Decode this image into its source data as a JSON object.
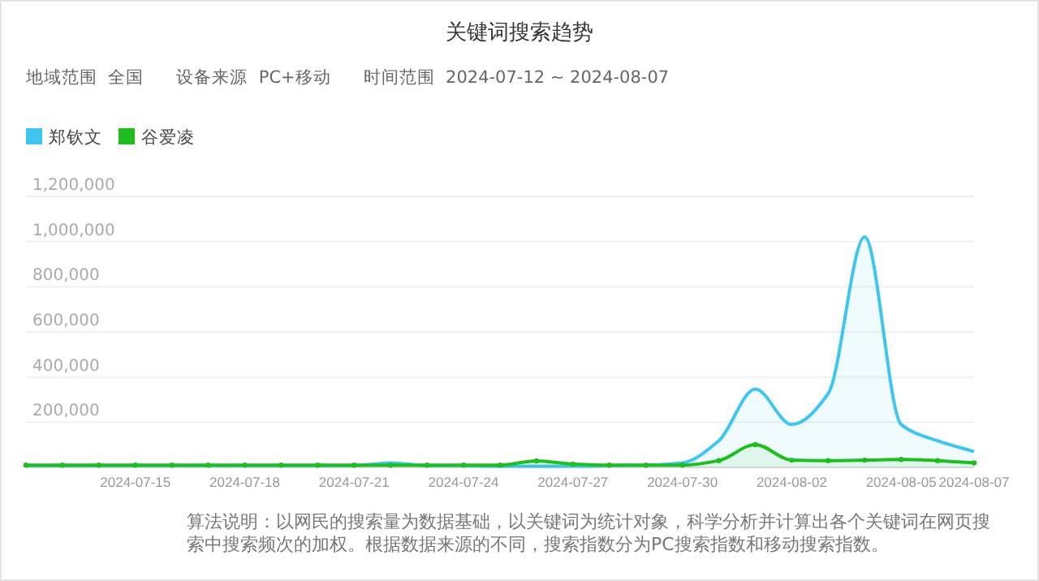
{
  "chart_data": {
    "type": "area",
    "title": "关键词搜索趋势",
    "subtitle": "地域范围  全国      设备来源  PC+移动      时间范围  2024-07-12 ~ 2024-08-07",
    "x": [
      "2024-07-12",
      "2024-07-13",
      "2024-07-14",
      "2024-07-15",
      "2024-07-16",
      "2024-07-17",
      "2024-07-18",
      "2024-07-19",
      "2024-07-20",
      "2024-07-21",
      "2024-07-22",
      "2024-07-23",
      "2024-07-24",
      "2024-07-25",
      "2024-07-26",
      "2024-07-27",
      "2024-07-28",
      "2024-07-29",
      "2024-07-30",
      "2024-07-31",
      "2024-08-01",
      "2024-08-02",
      "2024-08-03",
      "2024-08-04",
      "2024-08-05",
      "2024-08-06",
      "2024-08-07"
    ],
    "series": [
      {
        "name": "郑钦文",
        "color": "#3ec6f0",
        "values": [
          8000,
          8000,
          8000,
          8000,
          8000,
          8000,
          8000,
          8000,
          8000,
          8000,
          20000,
          8000,
          8000,
          5000,
          5000,
          5000,
          8000,
          10000,
          20000,
          118000,
          347000,
          190000,
          327000,
          1020000,
          190000,
          118000,
          70000
        ]
      },
      {
        "name": "谷爱凌",
        "color": "#1fbd1f",
        "marker": "circle",
        "values": [
          10000,
          10000,
          10000,
          10000,
          10000,
          10000,
          10000,
          10000,
          10000,
          10000,
          10000,
          10000,
          10000,
          10000,
          29000,
          15000,
          10000,
          10000,
          10000,
          30000,
          101000,
          32000,
          30000,
          32000,
          35000,
          30000,
          20000
        ]
      }
    ],
    "xlim": [
      "2024-07-12",
      "2024-08-07"
    ],
    "xticks": [
      {
        "value": "2024-07-15",
        "label": "2024-07-15"
      },
      {
        "value": "2024-07-18",
        "label": "2024-07-18"
      },
      {
        "value": "2024-07-21",
        "label": "2024-07-21"
      },
      {
        "value": "2024-07-24",
        "label": "2024-07-24"
      },
      {
        "value": "2024-07-27",
        "label": "2024-07-27"
      },
      {
        "value": "2024-07-30",
        "label": "2024-07-30"
      },
      {
        "value": "2024-08-02",
        "label": "2024-08-02"
      },
      {
        "value": "2024-08-05",
        "label": "2024-08-05"
      },
      {
        "value": "2024-08-07",
        "label": "2024-08-07"
      }
    ],
    "ylim": [
      0,
      1200000
    ],
    "yticks": [
      {
        "value": 200000,
        "label": "200,000"
      },
      {
        "value": 400000,
        "label": "400,000"
      },
      {
        "value": 600000,
        "label": "600,000"
      },
      {
        "value": 800000,
        "label": "800,000"
      },
      {
        "value": 1000000,
        "label": "1,000,000"
      },
      {
        "value": 1200000,
        "label": "1,200,000"
      }
    ],
    "grid": "y",
    "legend": "top left",
    "annotations": [
      "算法说明：以网民的搜索量为数据基础，以关键词为统计对象，科学分析并计算出各个关键词在网页搜索中搜索频次的加权。根据数据来源的不同，搜索指数分为PC搜索指数和移动搜索指数。"
    ]
  }
}
